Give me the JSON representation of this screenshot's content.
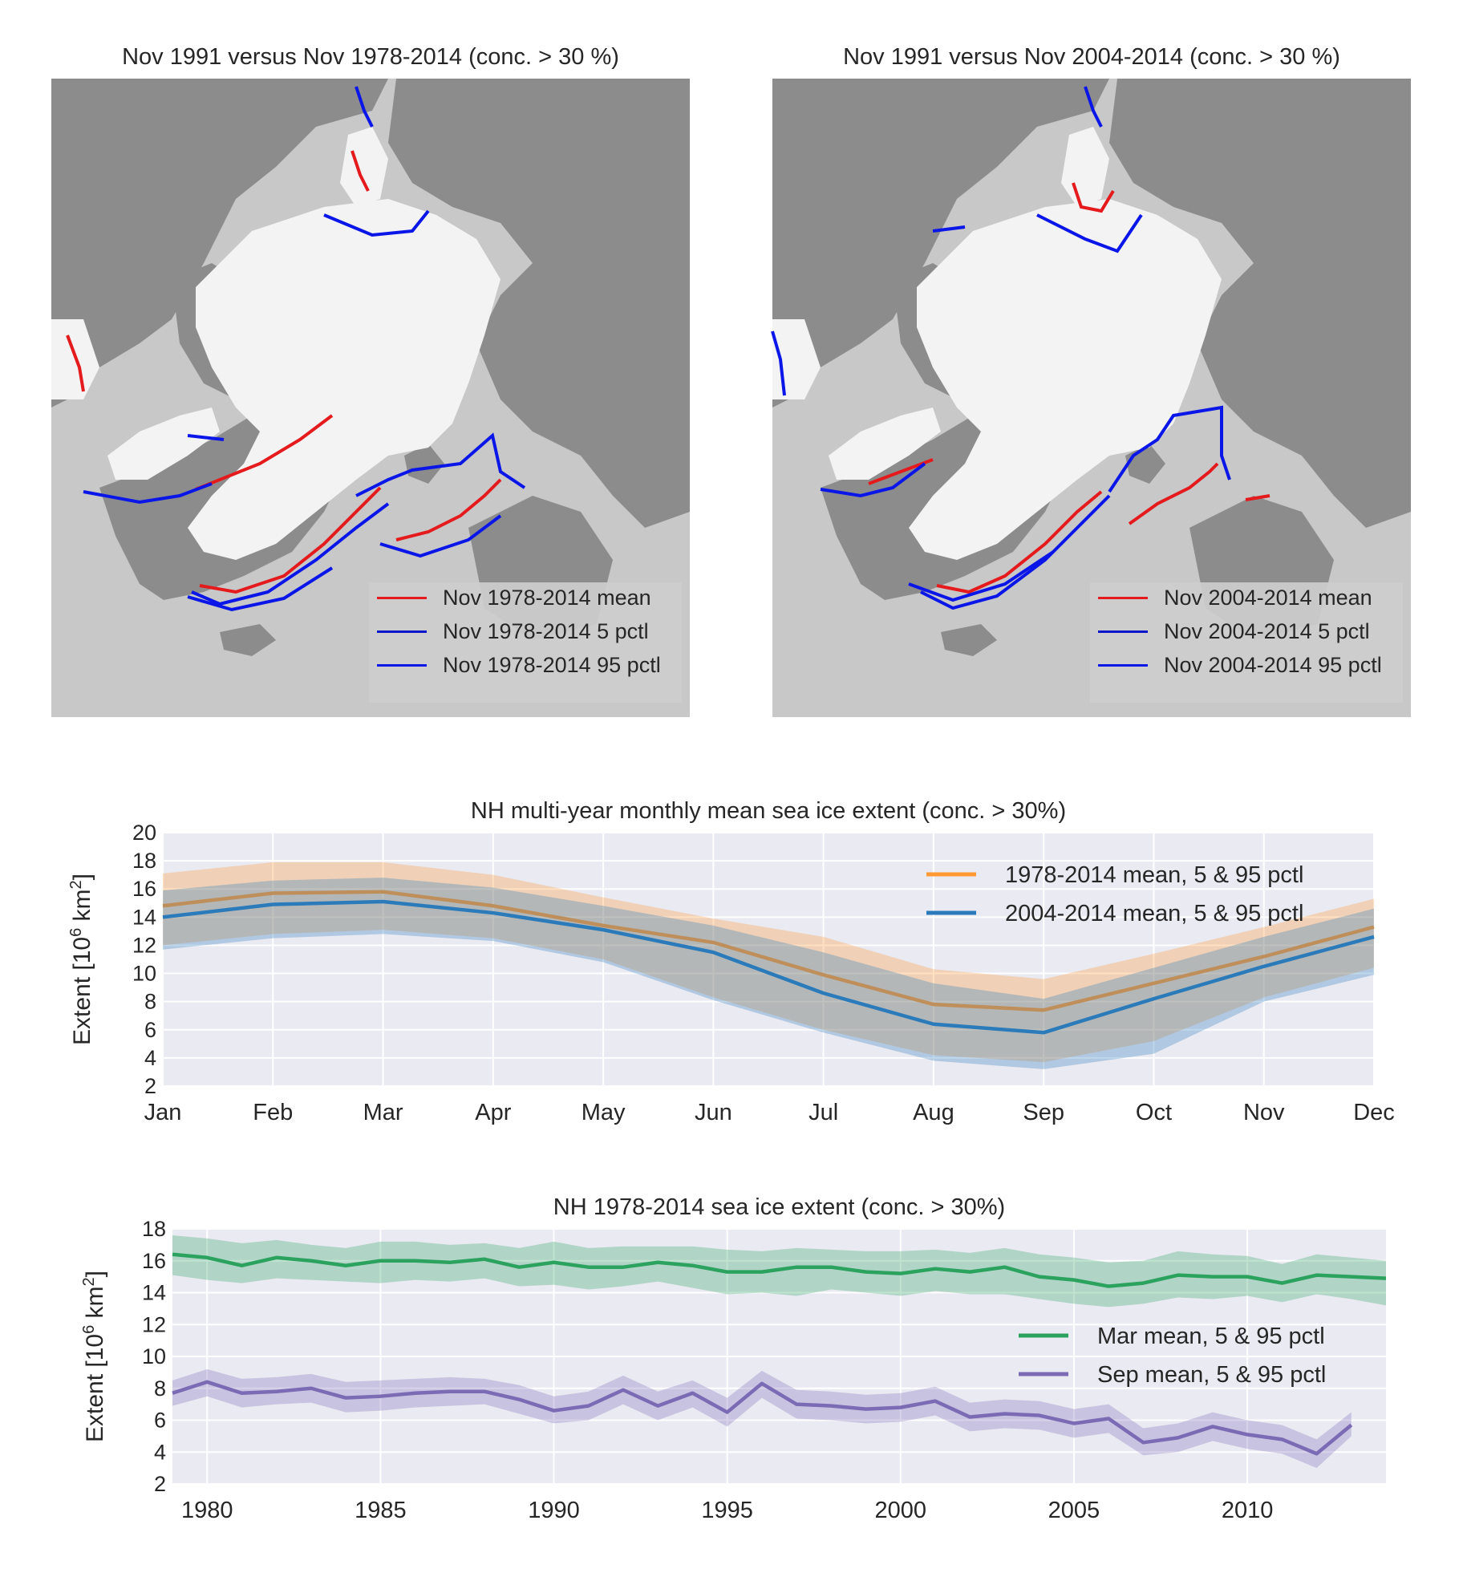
{
  "maps": [
    {
      "title": "Nov 1991 versus Nov 1978-2014 (conc. > 30 %)",
      "legend": [
        {
          "label": "Nov 1978-2014 mean",
          "color": "#e41a1c"
        },
        {
          "label": "Nov 1978-2014 5 pctl",
          "color": "#0a16c8"
        },
        {
          "label": "Nov 1978-2014 95 pctl",
          "color": "#0a16e8"
        }
      ]
    },
    {
      "title": "Nov 1991 versus Nov 2004-2014 (conc. > 30 %)",
      "legend": [
        {
          "label": "Nov 2004-2014 mean",
          "color": "#e41a1c"
        },
        {
          "label": "Nov 2004-2014 5 pctl",
          "color": "#0a16c8"
        },
        {
          "label": "Nov 2004-2014 95 pctl",
          "color": "#0a16e8"
        }
      ]
    }
  ],
  "chart_data": [
    {
      "type": "line",
      "title": "NH multi-year monthly mean sea ice extent (conc. > 30%)",
      "ylabel": "Extent [10⁶ km²]",
      "ylabel_parts": {
        "pre": "Extent [",
        "base": "10",
        "exp1": "6",
        "unit": "km",
        "exp2": "2",
        "post": "]"
      },
      "categories": [
        "Jan",
        "Feb",
        "Mar",
        "Apr",
        "May",
        "Jun",
        "Jul",
        "Aug",
        "Sep",
        "Oct",
        "Nov",
        "Dec"
      ],
      "ylim": [
        2,
        20
      ],
      "yticks": [
        2,
        4,
        6,
        8,
        10,
        12,
        14,
        16,
        18,
        20
      ],
      "grid": true,
      "legend_position": "top-right",
      "series": [
        {
          "name": "1978-2014 mean, 5 & 95 pctl",
          "color": "#ff9933",
          "values": [
            14.8,
            15.7,
            15.8,
            14.8,
            13.4,
            12.2,
            9.9,
            7.8,
            7.4,
            9.3,
            11.2,
            13.3
          ],
          "low": [
            12.0,
            12.8,
            13.1,
            12.5,
            11.0,
            8.3,
            6.0,
            4.2,
            3.7,
            5.2,
            8.3,
            10.4
          ],
          "high": [
            17.1,
            17.9,
            17.9,
            17.0,
            15.4,
            13.9,
            12.6,
            10.3,
            9.6,
            11.4,
            13.3,
            15.3
          ]
        },
        {
          "name": "2004-2014 mean, 5 & 95 pctl",
          "color": "#2b7bba",
          "values": [
            14.0,
            14.9,
            15.1,
            14.3,
            13.1,
            11.5,
            8.6,
            6.4,
            5.8,
            8.2,
            10.5,
            12.6
          ],
          "low": [
            11.7,
            12.5,
            12.8,
            12.3,
            10.8,
            8.1,
            5.8,
            3.8,
            3.2,
            4.3,
            8.0,
            9.9
          ],
          "high": [
            15.9,
            16.6,
            16.8,
            16.1,
            14.8,
            13.4,
            11.5,
            9.3,
            8.2,
            10.4,
            12.6,
            14.6
          ]
        }
      ]
    },
    {
      "type": "line",
      "title": "NH 1978-2014 sea ice extent (conc. > 30%)",
      "ylabel": "Extent [10⁶ km²]",
      "ylabel_parts": {
        "pre": "Extent [",
        "base": "10",
        "exp1": "6",
        "unit": "km",
        "exp2": "2",
        "post": "]"
      },
      "xlim": [
        1979,
        2014
      ],
      "xticks": [
        1980,
        1985,
        1990,
        1995,
        2000,
        2005,
        2010
      ],
      "ylim": [
        2,
        18
      ],
      "yticks": [
        2,
        4,
        6,
        8,
        10,
        12,
        14,
        16,
        18
      ],
      "grid": true,
      "legend_position": "center-right",
      "series": [
        {
          "name": "Mar mean, 5 & 95 pctl",
          "color": "#2ca25f",
          "x": [
            1979,
            1980,
            1981,
            1982,
            1983,
            1984,
            1985,
            1986,
            1987,
            1988,
            1989,
            1990,
            1991,
            1992,
            1993,
            1994,
            1995,
            1996,
            1997,
            1998,
            1999,
            2000,
            2001,
            2002,
            2003,
            2004,
            2005,
            2006,
            2007,
            2008,
            2009,
            2010,
            2011,
            2012,
            2013,
            2014
          ],
          "values": [
            16.4,
            16.2,
            15.7,
            16.2,
            16.0,
            15.7,
            16.0,
            16.0,
            15.9,
            16.1,
            15.6,
            15.9,
            15.6,
            15.6,
            15.9,
            15.7,
            15.3,
            15.3,
            15.6,
            15.6,
            15.3,
            15.2,
            15.5,
            15.3,
            15.6,
            15.0,
            14.8,
            14.4,
            14.6,
            15.1,
            15.0,
            15.0,
            14.6,
            15.1,
            15.0,
            14.9
          ],
          "low": [
            15.1,
            14.8,
            14.6,
            14.9,
            14.8,
            14.7,
            14.6,
            14.8,
            14.7,
            14.9,
            14.4,
            14.5,
            14.2,
            14.4,
            14.7,
            14.3,
            13.9,
            14.0,
            13.8,
            14.2,
            14.0,
            13.8,
            14.1,
            13.9,
            13.9,
            13.6,
            13.3,
            13.1,
            13.3,
            13.7,
            13.6,
            13.8,
            13.4,
            13.9,
            13.6,
            13.2
          ],
          "high": [
            17.6,
            17.4,
            17.1,
            17.3,
            17.0,
            16.8,
            17.2,
            17.2,
            17.0,
            17.1,
            16.8,
            17.2,
            16.8,
            16.9,
            16.9,
            16.9,
            16.7,
            16.6,
            16.8,
            16.7,
            16.6,
            16.6,
            16.7,
            16.5,
            16.8,
            16.4,
            16.2,
            15.9,
            16.0,
            16.6,
            16.4,
            16.3,
            15.8,
            16.4,
            16.2,
            16.0
          ]
        },
        {
          "name": "Sep mean, 5 & 95 pctl",
          "color": "#7b6bb5",
          "x": [
            1979,
            1980,
            1981,
            1982,
            1983,
            1984,
            1985,
            1986,
            1987,
            1988,
            1989,
            1990,
            1991,
            1992,
            1993,
            1994,
            1995,
            1996,
            1997,
            1998,
            1999,
            2000,
            2001,
            2002,
            2003,
            2004,
            2005,
            2006,
            2007,
            2008,
            2009,
            2010,
            2011,
            2012,
            2013
          ],
          "values": [
            7.7,
            8.4,
            7.7,
            7.8,
            8.0,
            7.4,
            7.5,
            7.7,
            7.8,
            7.8,
            7.3,
            6.6,
            6.9,
            7.9,
            6.9,
            7.7,
            6.5,
            8.3,
            7.0,
            6.9,
            6.7,
            6.8,
            7.2,
            6.2,
            6.4,
            6.3,
            5.8,
            6.1,
            4.6,
            4.9,
            5.6,
            5.1,
            4.8,
            3.9,
            5.7
          ],
          "low": [
            6.9,
            7.5,
            6.8,
            7.0,
            7.1,
            6.5,
            6.6,
            6.8,
            6.9,
            7.0,
            6.4,
            5.8,
            6.0,
            7.0,
            6.0,
            6.8,
            5.6,
            7.4,
            6.1,
            6.0,
            5.8,
            5.9,
            6.3,
            5.3,
            5.5,
            5.4,
            4.9,
            5.2,
            3.8,
            4.0,
            4.7,
            4.2,
            3.9,
            3.0,
            5.0
          ],
          "high": [
            8.5,
            9.2,
            8.6,
            8.7,
            8.9,
            8.4,
            8.5,
            8.6,
            8.7,
            8.6,
            8.2,
            7.5,
            7.8,
            8.8,
            7.8,
            8.5,
            7.4,
            9.1,
            7.9,
            7.8,
            7.6,
            7.7,
            8.1,
            7.1,
            7.3,
            7.2,
            6.7,
            7.0,
            5.5,
            5.8,
            6.5,
            6.0,
            5.7,
            4.8,
            6.5
          ]
        }
      ]
    }
  ]
}
